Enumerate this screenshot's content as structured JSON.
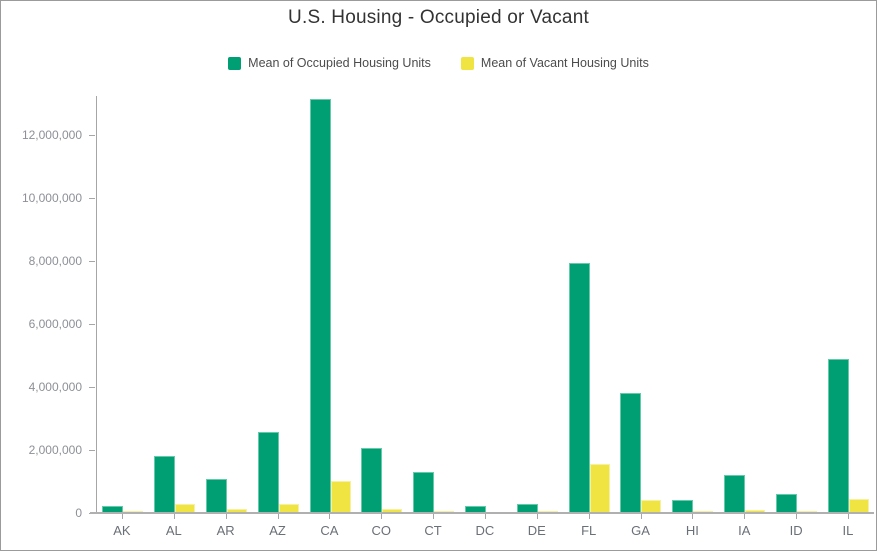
{
  "title": "U.S. Housing - Occupied or Vacant",
  "colors": {
    "occupied": "#009E73",
    "vacant": "#F0E442",
    "axis": "#a6a6a6"
  },
  "chart_data": {
    "type": "bar",
    "title": "U.S. Housing - Occupied or Vacant",
    "categories": [
      "AK",
      "AL",
      "AR",
      "AZ",
      "CA",
      "CO",
      "CT",
      "DC",
      "DE",
      "FL",
      "GA",
      "HI",
      "IA",
      "ID",
      "IL"
    ],
    "series": [
      {
        "name": "Mean of Occupied Housing Units",
        "color": "#009E73",
        "values": [
          220000,
          1810000,
          1070000,
          2570000,
          13150000,
          2050000,
          1310000,
          230000,
          290000,
          7930000,
          3800000,
          410000,
          1200000,
          590000,
          4880000
        ]
      },
      {
        "name": "Mean of Vacant Housing Units",
        "color": "#F0E442",
        "values": [
          50000,
          280000,
          120000,
          300000,
          1020000,
          140000,
          70000,
          30000,
          50000,
          1550000,
          410000,
          60000,
          90000,
          50000,
          440000
        ]
      }
    ],
    "xlabel": "",
    "ylabel": "",
    "yticks": [
      0,
      2000000,
      4000000,
      6000000,
      8000000,
      10000000,
      12000000
    ],
    "ylim": [
      0,
      13240000
    ],
    "grid": false,
    "legend_position": "top"
  }
}
